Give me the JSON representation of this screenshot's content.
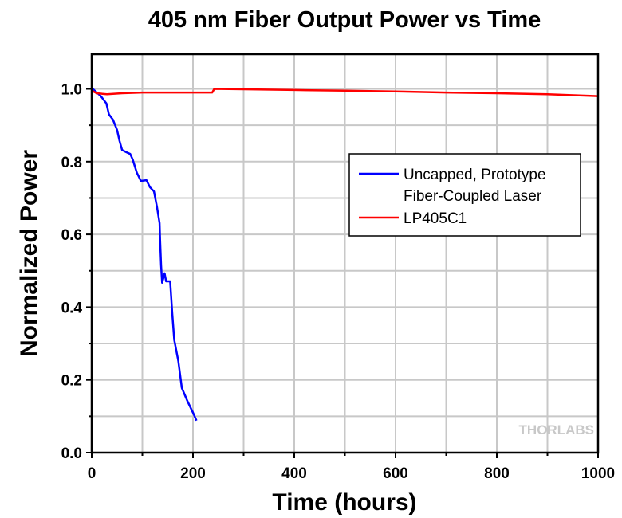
{
  "chart_data": {
    "type": "line",
    "title": "405 nm Fiber Output Power vs Time",
    "xlabel": "Time (hours)",
    "ylabel": "Normalized Power",
    "xlim": [
      0,
      1000
    ],
    "ylim": [
      0,
      1.1
    ],
    "xticks": [
      "0",
      "200",
      "400",
      "600",
      "800",
      "1000"
    ],
    "yticks": [
      "0.0",
      "0.2",
      "0.4",
      "0.6",
      "0.8",
      "1.0"
    ],
    "grid": true,
    "legend_placement": "center-right",
    "watermark": "THORLABS",
    "series": [
      {
        "name": "Uncapped, Prototype Fiber-Coupled Laser",
        "color": "#0000ff",
        "x": [
          0,
          2,
          18,
          29,
          34,
          42,
          50,
          55,
          60,
          68,
          76,
          81,
          89,
          97,
          108,
          115,
          123,
          129,
          134,
          135,
          137,
          139,
          144,
          147,
          155,
          159,
          163,
          171,
          178,
          189,
          200,
          207
        ],
        "y": [
          1.0,
          1.0,
          0.98,
          0.96,
          0.93,
          0.915,
          0.887,
          0.857,
          0.832,
          0.826,
          0.821,
          0.806,
          0.77,
          0.747,
          0.749,
          0.73,
          0.718,
          0.675,
          0.631,
          0.587,
          0.515,
          0.467,
          0.493,
          0.471,
          0.471,
          0.383,
          0.31,
          0.252,
          0.178,
          0.142,
          0.11,
          0.088
        ]
      },
      {
        "name": "LP405C1",
        "color": "#ff0000",
        "x": [
          0,
          10,
          30,
          60,
          100,
          150,
          200,
          238,
          242,
          300,
          400,
          500,
          600,
          700,
          800,
          900,
          1000
        ],
        "y": [
          0.995,
          0.988,
          0.985,
          0.988,
          0.99,
          0.99,
          0.99,
          0.99,
          1.0,
          0.999,
          0.997,
          0.995,
          0.993,
          0.99,
          0.988,
          0.985,
          0.98
        ]
      }
    ]
  }
}
